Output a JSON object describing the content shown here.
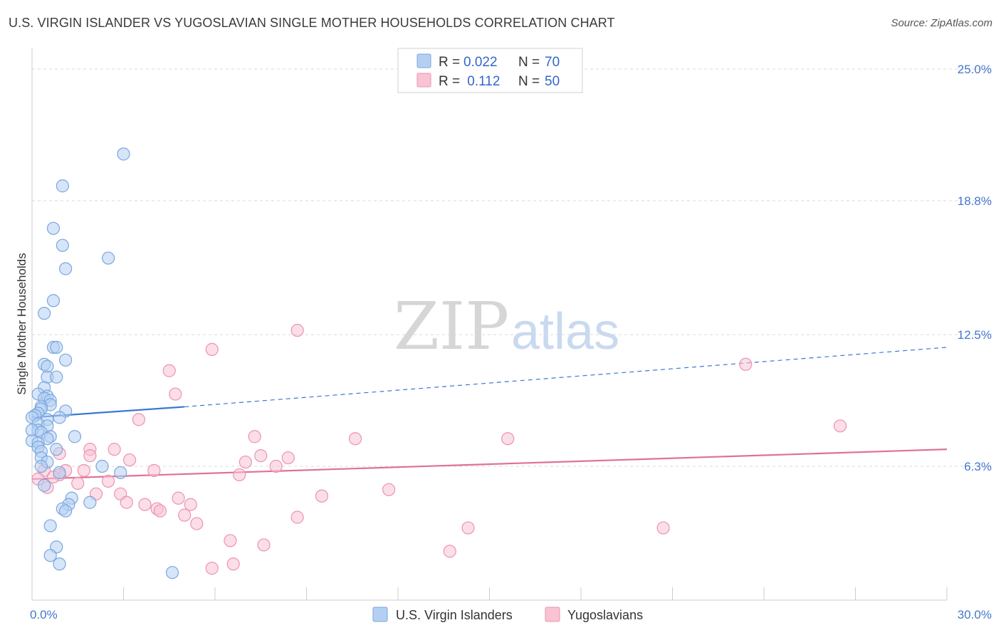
{
  "title": "U.S. VIRGIN ISLANDER VS YUGOSLAVIAN SINGLE MOTHER HOUSEHOLDS CORRELATION CHART",
  "source": "Source: ZipAtlas.com",
  "watermark": {
    "zip": "ZIP",
    "atlas": "atlas"
  },
  "colors": {
    "blue_fill": "#b5cff3",
    "blue_stroke": "#7aa7e0",
    "blue_line": "#3b78d0",
    "pink_fill": "#f8c3d3",
    "pink_stroke": "#ec93b0",
    "pink_line": "#e07098",
    "grid": "#d8d8d8",
    "axis_text": "#4477cc"
  },
  "chart_data": {
    "type": "scatter",
    "xlabel": "",
    "ylabel": "Single Mother Households",
    "xlim": [
      0,
      30
    ],
    "ylim": [
      0,
      25
    ],
    "x_tick_labels": [
      "0.0%",
      "30.0%"
    ],
    "y_ticks": [
      {
        "value": 6.3,
        "label": "6.3%"
      },
      {
        "value": 12.5,
        "label": "12.5%"
      },
      {
        "value": 18.8,
        "label": "18.8%"
      },
      {
        "value": 25.0,
        "label": "25.0%"
      }
    ],
    "legend": [
      {
        "swatch": "blue",
        "r_label": "R =",
        "r_value": "0.022",
        "n_label": "N =",
        "n_value": "70"
      },
      {
        "swatch": "pink",
        "r_label": "R =",
        "r_value": " 0.112",
        "n_label": "N =",
        "n_value": "50"
      }
    ],
    "series": [
      {
        "name": "U.S. Virgin Islanders",
        "color": "blue",
        "trend": {
          "x0": 0,
          "y0": 8.6,
          "x1": 5.0,
          "y1": 9.1,
          "dash_to_x": 30,
          "dash_to_y": 11.9
        },
        "points": [
          [
            3.0,
            21.0
          ],
          [
            1.0,
            19.5
          ],
          [
            0.7,
            17.5
          ],
          [
            1.0,
            16.7
          ],
          [
            2.5,
            16.1
          ],
          [
            1.1,
            15.6
          ],
          [
            0.7,
            14.1
          ],
          [
            0.4,
            13.5
          ],
          [
            0.7,
            11.9
          ],
          [
            0.8,
            11.9
          ],
          [
            1.1,
            11.3
          ],
          [
            0.4,
            11.1
          ],
          [
            0.5,
            11.0
          ],
          [
            0.5,
            10.5
          ],
          [
            0.8,
            10.5
          ],
          [
            0.4,
            10.0
          ],
          [
            0.2,
            9.7
          ],
          [
            0.5,
            9.6
          ],
          [
            0.4,
            9.5
          ],
          [
            0.6,
            9.4
          ],
          [
            0.6,
            9.2
          ],
          [
            0.3,
            9.1
          ],
          [
            0.3,
            9.0
          ],
          [
            0.2,
            8.8
          ],
          [
            1.1,
            8.9
          ],
          [
            0.1,
            8.7
          ],
          [
            0.5,
            8.5
          ],
          [
            0.9,
            8.6
          ],
          [
            0.0,
            8.6
          ],
          [
            0.2,
            8.3
          ],
          [
            0.5,
            8.2
          ],
          [
            0.2,
            8.0
          ],
          [
            0.0,
            8.0
          ],
          [
            0.3,
            7.9
          ],
          [
            0.6,
            7.7
          ],
          [
            0.5,
            7.6
          ],
          [
            1.4,
            7.7
          ],
          [
            0.0,
            7.5
          ],
          [
            0.2,
            7.4
          ],
          [
            0.2,
            7.2
          ],
          [
            0.8,
            7.1
          ],
          [
            0.3,
            7.0
          ],
          [
            0.3,
            6.7
          ],
          [
            0.5,
            6.5
          ],
          [
            0.3,
            6.3
          ],
          [
            2.3,
            6.3
          ],
          [
            0.9,
            6.0
          ],
          [
            2.9,
            6.0
          ],
          [
            0.4,
            5.4
          ],
          [
            1.3,
            4.8
          ],
          [
            1.2,
            4.5
          ],
          [
            1.0,
            4.3
          ],
          [
            1.1,
            4.2
          ],
          [
            1.9,
            4.6
          ],
          [
            0.6,
            3.5
          ],
          [
            0.8,
            2.5
          ],
          [
            0.6,
            2.1
          ],
          [
            0.9,
            1.7
          ],
          [
            4.6,
            1.3
          ]
        ]
      },
      {
        "name": "Yugoslavians",
        "color": "pink",
        "trend": {
          "x0": 0,
          "y0": 5.7,
          "x1": 30,
          "y1": 7.1
        },
        "points": [
          [
            8.7,
            12.7
          ],
          [
            5.9,
            11.8
          ],
          [
            4.5,
            10.8
          ],
          [
            23.4,
            11.1
          ],
          [
            4.7,
            9.7
          ],
          [
            3.5,
            8.5
          ],
          [
            26.5,
            8.2
          ],
          [
            7.3,
            7.7
          ],
          [
            10.6,
            7.6
          ],
          [
            15.6,
            7.6
          ],
          [
            1.9,
            7.1
          ],
          [
            2.7,
            7.1
          ],
          [
            0.9,
            6.9
          ],
          [
            1.9,
            6.8
          ],
          [
            7.5,
            6.8
          ],
          [
            8.4,
            6.7
          ],
          [
            3.2,
            6.6
          ],
          [
            7.0,
            6.5
          ],
          [
            8.0,
            6.3
          ],
          [
            1.7,
            6.1
          ],
          [
            4.0,
            6.1
          ],
          [
            1.1,
            6.1
          ],
          [
            0.4,
            6.1
          ],
          [
            0.9,
            5.9
          ],
          [
            0.7,
            5.8
          ],
          [
            6.8,
            5.9
          ],
          [
            0.2,
            5.7
          ],
          [
            2.5,
            5.6
          ],
          [
            1.5,
            5.5
          ],
          [
            0.5,
            5.3
          ],
          [
            2.1,
            5.0
          ],
          [
            2.9,
            5.0
          ],
          [
            9.5,
            4.9
          ],
          [
            11.7,
            5.2
          ],
          [
            4.8,
            4.8
          ],
          [
            3.1,
            4.6
          ],
          [
            3.7,
            4.5
          ],
          [
            5.2,
            4.5
          ],
          [
            4.1,
            4.3
          ],
          [
            4.2,
            4.2
          ],
          [
            5.0,
            4.0
          ],
          [
            8.7,
            3.9
          ],
          [
            5.4,
            3.6
          ],
          [
            14.3,
            3.4
          ],
          [
            20.7,
            3.4
          ],
          [
            6.5,
            2.8
          ],
          [
            7.6,
            2.6
          ],
          [
            13.7,
            2.3
          ],
          [
            6.6,
            1.7
          ],
          [
            5.9,
            1.5
          ]
        ]
      }
    ]
  }
}
